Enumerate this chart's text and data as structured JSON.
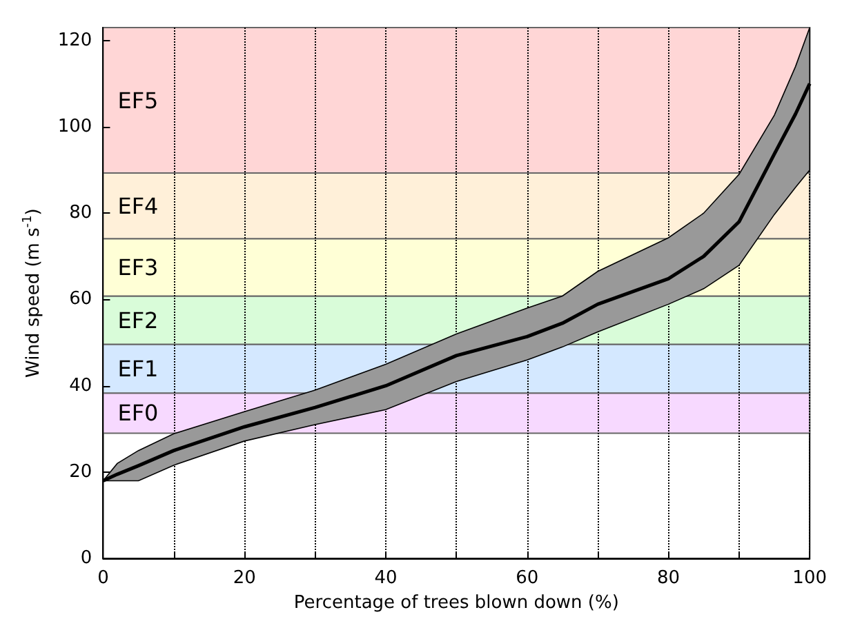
{
  "chart_data": {
    "type": "line",
    "xlabel": "Percentage of trees blown down (%)",
    "ylabel": "Wind speed (m s$^{-1}$)",
    "x": [
      0,
      2,
      5,
      10,
      20,
      30,
      40,
      50,
      60,
      65,
      70,
      80,
      85,
      90,
      95,
      98,
      100
    ],
    "series": [
      {
        "color": "#000000",
        "values": [
          18,
          19.5,
          21.5,
          25,
          30.5,
          35,
          40,
          47,
          51.4,
          54.5,
          58.9,
          64.8,
          70,
          78,
          93.7,
          103,
          110
        ],
        "lower": [
          18,
          18,
          18,
          21.6,
          27.2,
          31,
          34.5,
          41,
          46,
          49,
          52.5,
          58.9,
          62.5,
          67.9,
          79.7,
          86,
          90
        ],
        "upper": [
          18,
          22,
          25,
          28.9,
          34,
          39,
          45,
          52,
          58,
          60.8,
          66.5,
          74.3,
          80,
          89,
          102.7,
          114,
          123
        ]
      }
    ],
    "xlim": [
      0,
      100
    ],
    "ylim": [
      0,
      123
    ],
    "xticks": [
      0,
      {
        "value": 10,
        "label": null
      },
      20,
      {
        "value": 30,
        "label": null
      },
      40,
      {
        "value": 50,
        "label": null
      },
      60,
      {
        "value": 70,
        "label": null
      },
      80,
      {
        "value": 90,
        "label": null
      },
      100
    ],
    "yticks": [
      0,
      20,
      40,
      60,
      80,
      100,
      120
    ],
    "bands": [
      {
        "axis": "y",
        "from": 29,
        "to": 38.3,
        "label": "EF0",
        "color": "#f7d9ff"
      },
      {
        "axis": "y",
        "from": 38.3,
        "to": 49.6,
        "label": "EF1",
        "color": "#d4e8ff"
      },
      {
        "axis": "y",
        "from": 49.6,
        "to": 60.8,
        "label": "EF2",
        "color": "#d9fcd9"
      },
      {
        "axis": "y",
        "from": 60.8,
        "to": 74.1,
        "label": "EF3",
        "color": "#ffffd6"
      },
      {
        "axis": "y",
        "from": 74.1,
        "to": 89.3,
        "label": "EF4",
        "color": "#fff0d9"
      },
      {
        "axis": "y",
        "from": 89.3,
        "to": 123,
        "label": "EF5",
        "color": "#ffd6d6"
      }
    ],
    "grid": "x",
    "line_style": "solid",
    "marker": "none"
  }
}
